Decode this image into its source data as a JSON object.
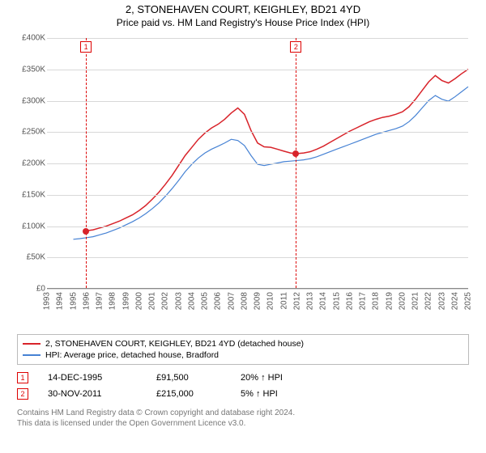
{
  "title": "2, STONEHAVEN COURT, KEIGHLEY, BD21 4YD",
  "subtitle": "Price paid vs. HM Land Registry's House Price Index (HPI)",
  "chart": {
    "type": "line",
    "background_color": "#ffffff",
    "grid_color": "#d8d8d8",
    "axis_color": "#888888",
    "text_color": "#555555",
    "xlim": [
      1993,
      2025
    ],
    "ylim": [
      0,
      400000
    ],
    "ytick_step": 50000,
    "yticks": [
      "£0",
      "£50K",
      "£100K",
      "£150K",
      "£200K",
      "£250K",
      "£300K",
      "£350K",
      "£400K"
    ],
    "xticks": [
      1993,
      1994,
      1995,
      1996,
      1997,
      1998,
      1999,
      2000,
      2001,
      2002,
      2003,
      2004,
      2005,
      2006,
      2007,
      2008,
      2009,
      2010,
      2011,
      2012,
      2013,
      2014,
      2015,
      2016,
      2017,
      2018,
      2019,
      2020,
      2021,
      2022,
      2023,
      2024,
      2025
    ],
    "series": [
      {
        "name": "2, STONEHAVEN COURT, KEIGHLEY, BD21 4YD (detached house)",
        "color": "#d8232a",
        "line_width": 1.5,
        "data": [
          [
            1995.96,
            91500
          ],
          [
            1996.5,
            93000
          ],
          [
            1997,
            96000
          ],
          [
            1997.5,
            99000
          ],
          [
            1998,
            103000
          ],
          [
            1998.5,
            107000
          ],
          [
            1999,
            112000
          ],
          [
            1999.5,
            117000
          ],
          [
            2000,
            124000
          ],
          [
            2000.5,
            132000
          ],
          [
            2001,
            142000
          ],
          [
            2001.5,
            153000
          ],
          [
            2002,
            166000
          ],
          [
            2002.5,
            180000
          ],
          [
            2003,
            196000
          ],
          [
            2003.5,
            212000
          ],
          [
            2004,
            225000
          ],
          [
            2004.5,
            238000
          ],
          [
            2005,
            248000
          ],
          [
            2005.5,
            256000
          ],
          [
            2006,
            262000
          ],
          [
            2006.5,
            270000
          ],
          [
            2007,
            280000
          ],
          [
            2007.5,
            288000
          ],
          [
            2008,
            278000
          ],
          [
            2008.5,
            252000
          ],
          [
            2009,
            232000
          ],
          [
            2009.5,
            226000
          ],
          [
            2010,
            225000
          ],
          [
            2010.5,
            222000
          ],
          [
            2011,
            219000
          ],
          [
            2011.5,
            216000
          ],
          [
            2011.92,
            215000
          ],
          [
            2012.5,
            216000
          ],
          [
            2013,
            218000
          ],
          [
            2013.5,
            222000
          ],
          [
            2014,
            227000
          ],
          [
            2014.5,
            233000
          ],
          [
            2015,
            239000
          ],
          [
            2015.5,
            245000
          ],
          [
            2016,
            251000
          ],
          [
            2016.5,
            256000
          ],
          [
            2017,
            261000
          ],
          [
            2017.5,
            266000
          ],
          [
            2018,
            270000
          ],
          [
            2018.5,
            273000
          ],
          [
            2019,
            275000
          ],
          [
            2019.5,
            278000
          ],
          [
            2020,
            282000
          ],
          [
            2020.5,
            290000
          ],
          [
            2021,
            302000
          ],
          [
            2021.5,
            316000
          ],
          [
            2022,
            330000
          ],
          [
            2022.5,
            340000
          ],
          [
            2023,
            332000
          ],
          [
            2023.5,
            328000
          ],
          [
            2024,
            335000
          ],
          [
            2024.5,
            343000
          ],
          [
            2025,
            350000
          ]
        ]
      },
      {
        "name": "HPI: Average price, detached house, Bradford",
        "color": "#4682d4",
        "line_width": 1.2,
        "data": [
          [
            1995,
            78000
          ],
          [
            1995.5,
            79000
          ],
          [
            1996,
            80500
          ],
          [
            1996.5,
            82000
          ],
          [
            1997,
            85000
          ],
          [
            1997.5,
            88000
          ],
          [
            1998,
            92000
          ],
          [
            1998.5,
            96000
          ],
          [
            1999,
            101000
          ],
          [
            1999.5,
            106000
          ],
          [
            2000,
            112000
          ],
          [
            2000.5,
            119000
          ],
          [
            2001,
            127000
          ],
          [
            2001.5,
            136000
          ],
          [
            2002,
            147000
          ],
          [
            2002.5,
            159000
          ],
          [
            2003,
            172000
          ],
          [
            2003.5,
            186000
          ],
          [
            2004,
            198000
          ],
          [
            2004.5,
            208000
          ],
          [
            2005,
            216000
          ],
          [
            2005.5,
            222000
          ],
          [
            2006,
            227000
          ],
          [
            2006.5,
            232000
          ],
          [
            2007,
            238000
          ],
          [
            2007.5,
            236000
          ],
          [
            2008,
            228000
          ],
          [
            2008.5,
            212000
          ],
          [
            2009,
            198000
          ],
          [
            2009.5,
            196000
          ],
          [
            2010,
            198000
          ],
          [
            2010.5,
            200000
          ],
          [
            2011,
            202000
          ],
          [
            2011.5,
            203000
          ],
          [
            2012,
            204000
          ],
          [
            2012.5,
            205000
          ],
          [
            2013,
            207000
          ],
          [
            2013.5,
            210000
          ],
          [
            2014,
            214000
          ],
          [
            2014.5,
            218000
          ],
          [
            2015,
            222000
          ],
          [
            2015.5,
            226000
          ],
          [
            2016,
            230000
          ],
          [
            2016.5,
            234000
          ],
          [
            2017,
            238000
          ],
          [
            2017.5,
            242000
          ],
          [
            2018,
            246000
          ],
          [
            2018.5,
            249000
          ],
          [
            2019,
            252000
          ],
          [
            2019.5,
            255000
          ],
          [
            2020,
            259000
          ],
          [
            2020.5,
            266000
          ],
          [
            2021,
            276000
          ],
          [
            2021.5,
            288000
          ],
          [
            2022,
            300000
          ],
          [
            2022.5,
            308000
          ],
          [
            2023,
            302000
          ],
          [
            2023.5,
            299000
          ],
          [
            2024,
            306000
          ],
          [
            2024.5,
            314000
          ],
          [
            2025,
            322000
          ]
        ]
      }
    ],
    "sale_markers": [
      {
        "index": "1",
        "x": 1995.96,
        "y": 91500
      },
      {
        "index": "2",
        "x": 2011.92,
        "y": 215000
      }
    ]
  },
  "legend": {
    "rows": [
      {
        "color": "#d8232a",
        "label": "2, STONEHAVEN COURT, KEIGHLEY, BD21 4YD (detached house)"
      },
      {
        "color": "#4682d4",
        "label": "HPI: Average price, detached house, Bradford"
      }
    ]
  },
  "sales": [
    {
      "index": "1",
      "date": "14-DEC-1995",
      "price": "£91,500",
      "hpi": "20% ↑ HPI"
    },
    {
      "index": "2",
      "date": "30-NOV-2011",
      "price": "£215,000",
      "hpi": "5% ↑ HPI"
    }
  ],
  "footer_line1": "Contains HM Land Registry data © Crown copyright and database right 2024.",
  "footer_line2": "This data is licensed under the Open Government Licence v3.0."
}
